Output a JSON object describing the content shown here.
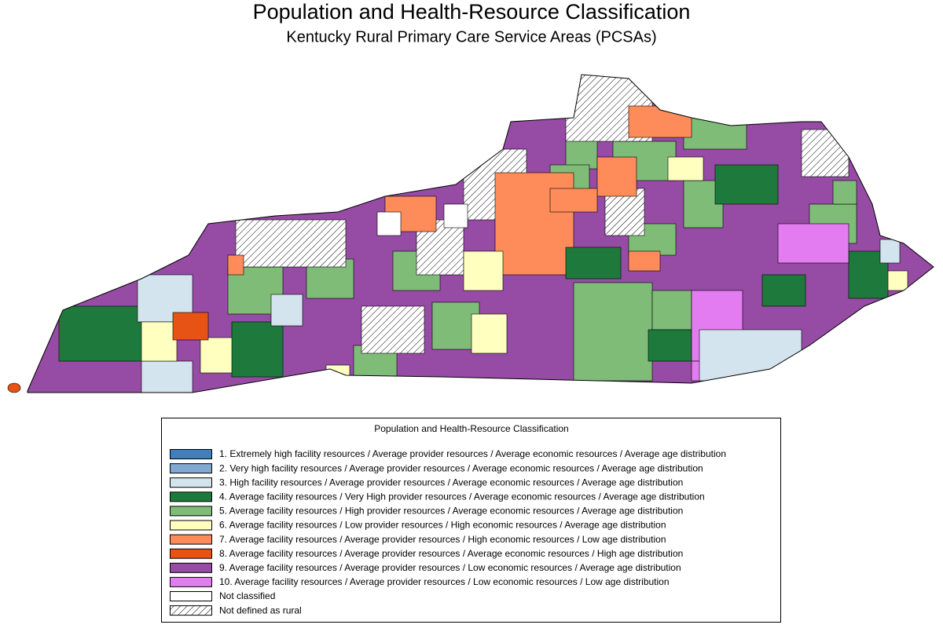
{
  "header": {
    "title": "Population and Health-Resource Classification",
    "subtitle": "Kentucky Rural Primary Care Service Areas (PCSAs)"
  },
  "legend": {
    "title": "Population and Health-Resource Classification",
    "items": [
      {
        "label": "1. Extremely high facility resources / Average provider resources / Average economic resources / Average age distribution",
        "color": "#3f7fbf"
      },
      {
        "label": "2. Very high facility resources / Average provider resources / Average economic resources / Average age distribution",
        "color": "#80a8d0"
      },
      {
        "label": "3. High facility resources / Average provider resources / Average economic resources / Average age distribution",
        "color": "#d3e4ef"
      },
      {
        "label": "4. Average facility resources / Very High provider resources / Average economic resources / Average age distribution",
        "color": "#1e7a3c"
      },
      {
        "label": "5. Average facility resources / High provider resources / Average economic resources / Average age distribution",
        "color": "#7fbc78"
      },
      {
        "label": "6. Average facility resources / Low provider resources / High economic resources / Average age distribution",
        "color": "#ffffc0"
      },
      {
        "label": "7. Average facility resources / Average provider resources / High economic resources / Low age distribution",
        "color": "#fd8c5a"
      },
      {
        "label": "8. Average facility resources / Average provider resources / Average economic resources / High age distribution",
        "color": "#e65314"
      },
      {
        "label": "9. Average facility resources / Average provider resources / Low economic resources / Average age distribution",
        "color": "#964ba4"
      },
      {
        "label": "10. Average facility resources / Average provider resources / Low economic resources / Low age distribution",
        "color": "#e37cf0"
      },
      {
        "label": "Not classified",
        "color": "#ffffff"
      },
      {
        "label": "Not defined as rural",
        "color": "hatched"
      }
    ]
  }
}
